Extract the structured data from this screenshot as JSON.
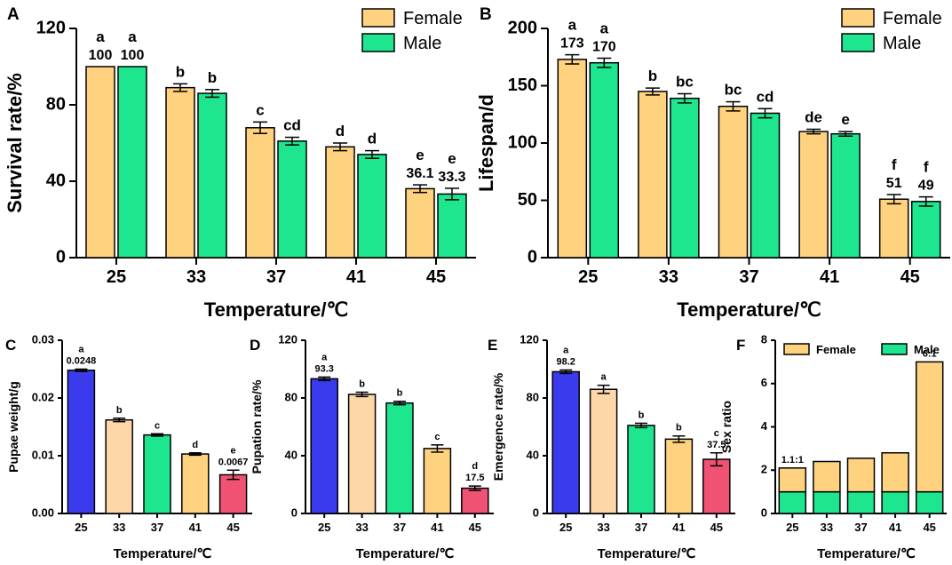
{
  "chart_data": [
    {
      "id": "A",
      "panel_label": "A",
      "type": "bar",
      "categories": [
        "25",
        "33",
        "37",
        "41",
        "45"
      ],
      "series": [
        {
          "name": "Female",
          "color": "#FFD27F",
          "values": [
            100,
            89,
            68,
            58,
            36.1
          ],
          "errors": [
            0,
            2,
            3,
            2,
            2
          ],
          "letters": [
            "a",
            "b",
            "c",
            "d",
            "e"
          ],
          "labels": [
            "100",
            "",
            "",
            "",
            "36.1"
          ]
        },
        {
          "name": "Male",
          "color": "#1EE68E",
          "values": [
            100,
            86,
            61,
            54,
            33.3
          ],
          "errors": [
            0,
            2,
            2,
            2,
            3
          ],
          "letters": [
            "a",
            "b",
            "cd",
            "d",
            "e"
          ],
          "labels": [
            "100",
            "",
            "",
            "",
            "33.3"
          ]
        }
      ],
      "xlabel": "Temperature/℃",
      "ylabel": "Survival rate/%",
      "ylim": [
        0,
        120
      ],
      "yticks": [
        "0",
        "40",
        "80",
        "120"
      ],
      "legend": "top-right"
    },
    {
      "id": "B",
      "panel_label": "B",
      "type": "bar",
      "categories": [
        "25",
        "33",
        "37",
        "41",
        "45"
      ],
      "series": [
        {
          "name": "Female",
          "color": "#FFD27F",
          "values": [
            173,
            145,
            132,
            110,
            51
          ],
          "errors": [
            4,
            3,
            4,
            2,
            4
          ],
          "letters": [
            "a",
            "b",
            "bc",
            "de",
            "f"
          ],
          "labels": [
            "173",
            "",
            "",
            "",
            "51"
          ]
        },
        {
          "name": "Male",
          "color": "#1EE68E",
          "values": [
            170,
            139,
            126,
            108,
            49
          ],
          "errors": [
            4,
            4,
            4,
            2,
            4
          ],
          "letters": [
            "a",
            "bc",
            "cd",
            "e",
            "f"
          ],
          "labels": [
            "170",
            "",
            "",
            "",
            "49"
          ]
        }
      ],
      "xlabel": "Temperature/℃",
      "ylabel": "Lifespan/d",
      "ylim": [
        0,
        200
      ],
      "yticks": [
        "0",
        "50",
        "100",
        "150",
        "200"
      ],
      "legend": "top-right"
    },
    {
      "id": "C",
      "panel_label": "C",
      "type": "bar",
      "categories": [
        "25",
        "33",
        "37",
        "41",
        "45"
      ],
      "values": [
        0.0248,
        0.0162,
        0.0136,
        0.0103,
        0.0067
      ],
      "errors": [
        0.0002,
        0.0003,
        0.0002,
        0.0002,
        0.0008
      ],
      "colors": [
        "#3B3BEE",
        "#FFD6A8",
        "#1EE68E",
        "#FFD27F",
        "#F05274"
      ],
      "letters": [
        "a",
        "b",
        "c",
        "d",
        "e"
      ],
      "labels": [
        "0.0248",
        "",
        "",
        "",
        "0.0067"
      ],
      "xlabel": "Temperature/℃",
      "ylabel": "Pupae weight/g",
      "ylim": [
        0,
        0.03
      ],
      "yticks": [
        "0.00",
        "0.01",
        "0.02",
        "0.03"
      ]
    },
    {
      "id": "D",
      "panel_label": "D",
      "type": "bar",
      "categories": [
        "25",
        "33",
        "37",
        "41",
        "45"
      ],
      "values": [
        93.3,
        82.5,
        76.5,
        45,
        17.5
      ],
      "errors": [
        1.2,
        1.5,
        1.2,
        2.5,
        1.5
      ],
      "colors": [
        "#3B3BEE",
        "#FFD6A8",
        "#1EE68E",
        "#FFD27F",
        "#F05274"
      ],
      "letters": [
        "a",
        "b",
        "b",
        "c",
        "d"
      ],
      "labels": [
        "93.3",
        "",
        "",
        "",
        "17.5"
      ],
      "xlabel": "Temperature/℃",
      "ylabel": "Pupation rate/%",
      "ylim": [
        0,
        120
      ],
      "yticks": [
        "0",
        "40",
        "80",
        "120"
      ]
    },
    {
      "id": "E",
      "panel_label": "E",
      "type": "bar",
      "categories": [
        "25",
        "33",
        "37",
        "41",
        "45"
      ],
      "values": [
        98.2,
        86,
        61,
        51.5,
        37.5
      ],
      "errors": [
        1.2,
        2.8,
        1.5,
        2.2,
        4.5
      ],
      "colors": [
        "#3B3BEE",
        "#FFD6A8",
        "#1EE68E",
        "#FFD27F",
        "#F05274"
      ],
      "letters": [
        "a",
        "a",
        "b",
        "b",
        "c"
      ],
      "labels": [
        "98.2",
        "",
        "",
        "",
        "37.5"
      ],
      "xlabel": "Temperature/℃",
      "ylabel": "Emergence rate/%",
      "ylim": [
        0,
        120
      ],
      "yticks": [
        "0",
        "40",
        "80",
        "120"
      ]
    },
    {
      "id": "F",
      "panel_label": "F",
      "type": "bar",
      "stacked": true,
      "categories": [
        "25",
        "33",
        "37",
        "41",
        "45"
      ],
      "series": [
        {
          "name": "Male",
          "color": "#1EE68E",
          "values": [
            1,
            1,
            1,
            1,
            1
          ]
        },
        {
          "name": "Female",
          "color": "#FFD27F",
          "values": [
            1.1,
            1.4,
            1.55,
            1.8,
            6
          ]
        }
      ],
      "labels": [
        "1.1:1",
        "",
        "",
        "",
        "6:1"
      ],
      "xlabel": "Temperature/℃",
      "ylabel": "Sex ratio",
      "ylim": [
        0,
        8
      ],
      "yticks": [
        "0",
        "2",
        "4",
        "6",
        "8"
      ],
      "legend_order": [
        "Female",
        "Male"
      ],
      "legend": "top"
    }
  ]
}
